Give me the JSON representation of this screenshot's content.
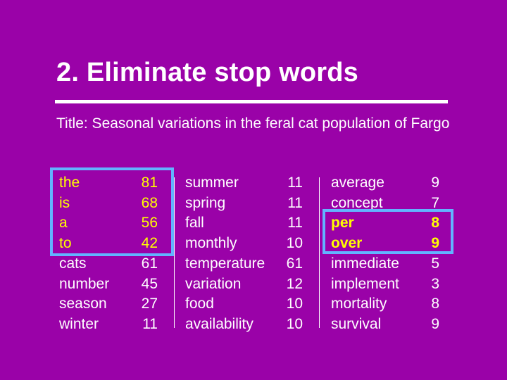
{
  "slide": {
    "heading": "2. Eliminate stop words",
    "subtitle": "Title: Seasonal variations in the feral cat population of Fargo"
  },
  "columns": {
    "group1": {
      "words": [
        "the",
        "is",
        "a",
        "to",
        "cats",
        "number",
        "season",
        "winter"
      ],
      "counts": [
        "81",
        "68",
        "56",
        "42",
        "61",
        "45",
        "27",
        "11"
      ]
    },
    "group2": {
      "words": [
        "summer",
        "spring",
        "fall",
        "monthly",
        "temperature",
        "variation",
        "food",
        "availability"
      ],
      "counts": [
        "11",
        "11",
        "11",
        "10",
        "61",
        "12",
        "10",
        "10"
      ]
    },
    "group3": {
      "words": [
        "average",
        "concept",
        "per",
        "over",
        "immediate",
        "implement",
        "mortality",
        "survival"
      ],
      "counts": [
        "9",
        "7",
        "8",
        "9",
        "5",
        "3",
        "8",
        "9"
      ]
    }
  },
  "colors": {
    "background": "#9a02a8",
    "highlight_text": "#ffff00",
    "highlight_box": "#62b4ff"
  }
}
